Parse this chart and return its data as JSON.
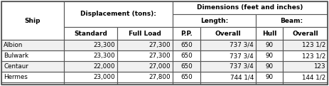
{
  "ships": [
    "Albion",
    "Bulwark",
    "Centaur",
    "Hermes"
  ],
  "standard": [
    "23,300",
    "23,300",
    "22,000",
    "23,000"
  ],
  "full_load": [
    "27,300",
    "27,300",
    "27,000",
    "27,800"
  ],
  "pp": [
    "650",
    "650",
    "650",
    "650"
  ],
  "overall_length": [
    "737 3/4",
    "737 3/4",
    "737 3/4",
    "744 1/4"
  ],
  "hull": [
    "90",
    "90",
    "90",
    "90"
  ],
  "overall_beam": [
    "123 1/2",
    "123 1/2",
    "123",
    "144 1/2"
  ],
  "header_bg": "#ffffff",
  "subheader_bg": "#ffffff",
  "data_bg": "#ffffff",
  "alt_bg": "#e8e8e8",
  "border_color": "#555555",
  "text_color": "#000000",
  "title_displacement": "Displacement (tons):",
  "title_dimensions": "Dimensions (feet and inches)",
  "title_length": "Length:",
  "title_beam": "Beam:",
  "col_ship": "Ship",
  "col_standard": "Standard",
  "col_full_load": "Full Load",
  "col_pp": "P.P.",
  "col_overall": "Overall",
  "col_hull": "Hull"
}
